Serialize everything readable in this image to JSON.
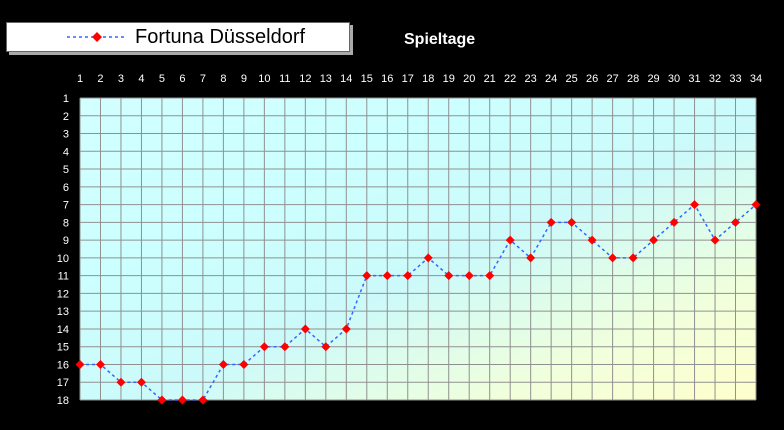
{
  "chart_data": {
    "type": "line",
    "title": "Spieltage",
    "x": [
      1,
      2,
      3,
      4,
      5,
      6,
      7,
      8,
      9,
      10,
      11,
      12,
      13,
      14,
      15,
      16,
      17,
      18,
      19,
      20,
      21,
      22,
      23,
      24,
      25,
      26,
      27,
      28,
      29,
      30,
      31,
      32,
      33,
      34
    ],
    "x_ticks": [
      "1",
      "2",
      "3",
      "4",
      "5",
      "6",
      "7",
      "8",
      "9",
      "10",
      "11",
      "12",
      "13",
      "14",
      "15",
      "16",
      "17",
      "18",
      "19",
      "20",
      "21",
      "22",
      "23",
      "24",
      "25",
      "26",
      "27",
      "28",
      "29",
      "30",
      "31",
      "32",
      "33",
      "34"
    ],
    "y_ticks": [
      "1",
      "2",
      "3",
      "4",
      "5",
      "6",
      "7",
      "8",
      "9",
      "10",
      "11",
      "12",
      "13",
      "14",
      "15",
      "16",
      "17",
      "18"
    ],
    "ylim": [
      1,
      18
    ],
    "y_inverted": true,
    "grid": true,
    "legend": "top-left",
    "series": [
      {
        "name": "Fortuna Düsseldorf",
        "values": [
          16,
          16,
          17,
          17,
          18,
          18,
          18,
          16,
          16,
          15,
          15,
          14,
          15,
          14,
          11,
          11,
          11,
          10,
          11,
          11,
          11,
          9,
          10,
          8,
          8,
          9,
          10,
          10,
          9,
          8,
          7,
          9,
          8,
          7
        ]
      }
    ],
    "colors": {
      "line": "#3366ff",
      "marker": "#ff0000",
      "grid": "#909090",
      "background": "#000000",
      "plot_gradient_start": "#ccffff",
      "plot_gradient_end": "#ffffcc"
    }
  }
}
